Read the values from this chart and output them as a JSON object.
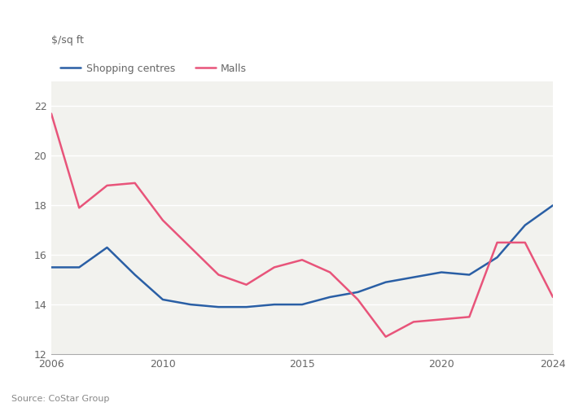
{
  "title": "$/sq ft",
  "source": "Source: CoStar Group",
  "legend": [
    "Shopping centres",
    "Malls"
  ],
  "line_colors": [
    "#2a5fa5",
    "#e8547a"
  ],
  "ylim": [
    12,
    23
  ],
  "yticks": [
    12,
    14,
    16,
    18,
    20,
    22
  ],
  "xlim": [
    2006,
    2024
  ],
  "xticks": [
    2006,
    2010,
    2015,
    2020,
    2024
  ],
  "shopping_centres_x": [
    2006,
    2007,
    2008,
    2009,
    2010,
    2011,
    2012,
    2013,
    2014,
    2015,
    2016,
    2017,
    2018,
    2019,
    2020,
    2021,
    2022,
    2023,
    2024
  ],
  "shopping_centres_y": [
    15.5,
    15.5,
    16.3,
    15.2,
    14.2,
    14.0,
    13.9,
    13.9,
    14.0,
    14.0,
    14.3,
    14.5,
    14.9,
    15.1,
    15.3,
    15.2,
    15.9,
    17.2,
    18.0
  ],
  "malls_x": [
    2006,
    2007,
    2008,
    2009,
    2010,
    2011,
    2012,
    2013,
    2014,
    2015,
    2016,
    2017,
    2018,
    2019,
    2020,
    2021,
    2022,
    2023,
    2024
  ],
  "malls_y": [
    21.7,
    17.9,
    18.8,
    18.9,
    17.4,
    16.3,
    15.2,
    14.8,
    15.5,
    15.8,
    15.3,
    14.2,
    12.7,
    13.3,
    13.4,
    13.5,
    16.5,
    16.5,
    14.3
  ],
  "background_color": "#ffffff",
  "plot_bg_color": "#f2f2ee",
  "grid_color": "#ffffff",
  "line_width": 1.8,
  "tick_color": "#666666",
  "label_color": "#666666"
}
